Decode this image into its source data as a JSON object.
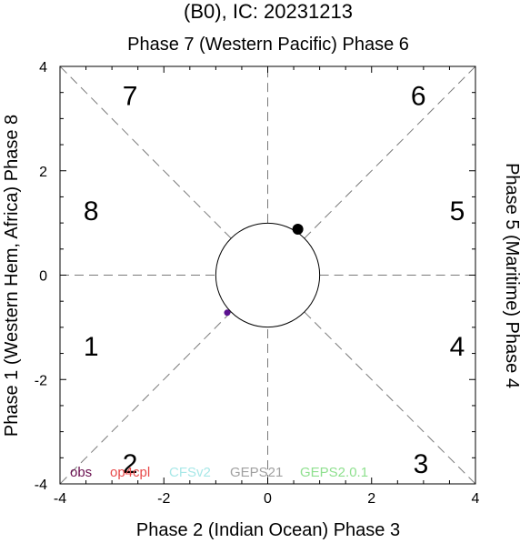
{
  "chart_data": {
    "type": "scatter",
    "title": "(B0), IC: 20231213",
    "top_label": "Phase 7 (Western Pacific) Phase 6",
    "xlabel": "Phase 2 (Indian Ocean) Phase 3",
    "ylabel_left": "Phase 1 (Western Hem, Africa) Phase 8",
    "ylabel_right": "Phase 5 (Maritime) Phase 4",
    "xlim": [
      -4,
      4
    ],
    "ylim": [
      -4,
      4
    ],
    "xticks": [
      -4,
      -2,
      0,
      2,
      4
    ],
    "yticks": [
      -4,
      -2,
      0,
      2,
      4
    ],
    "unit_circle_radius": 1,
    "phase_sectors": [
      {
        "label": "7",
        "x": -2.65,
        "y": 3.45
      },
      {
        "label": "6",
        "x": 2.9,
        "y": 3.45
      },
      {
        "label": "8",
        "x": -3.4,
        "y": 1.25
      },
      {
        "label": "5",
        "x": 3.65,
        "y": 1.25
      },
      {
        "label": "1",
        "x": -3.4,
        "y": -1.35
      },
      {
        "label": "4",
        "x": 3.65,
        "y": -1.35
      },
      {
        "label": "2",
        "x": -2.65,
        "y": -3.6
      },
      {
        "label": "3",
        "x": 2.95,
        "y": -3.6
      }
    ],
    "points": [
      {
        "x": 0.58,
        "y": 0.88,
        "color": "#000000",
        "size": "large"
      },
      {
        "x": -0.78,
        "y": -0.72,
        "color": "#5a1090",
        "size": "small"
      }
    ],
    "legend": [
      {
        "name": "obs",
        "color": "#6a1050"
      },
      {
        "name": "op4cpl",
        "color": "#e84a4a"
      },
      {
        "name": "CFSv2",
        "color": "#a8e8e8"
      },
      {
        "name": "GEPS21",
        "color": "#a0a0a0"
      },
      {
        "name": "GEPS2.0.1",
        "color": "#8fe08f"
      }
    ],
    "legend_placement": "bottom, inside plot"
  }
}
